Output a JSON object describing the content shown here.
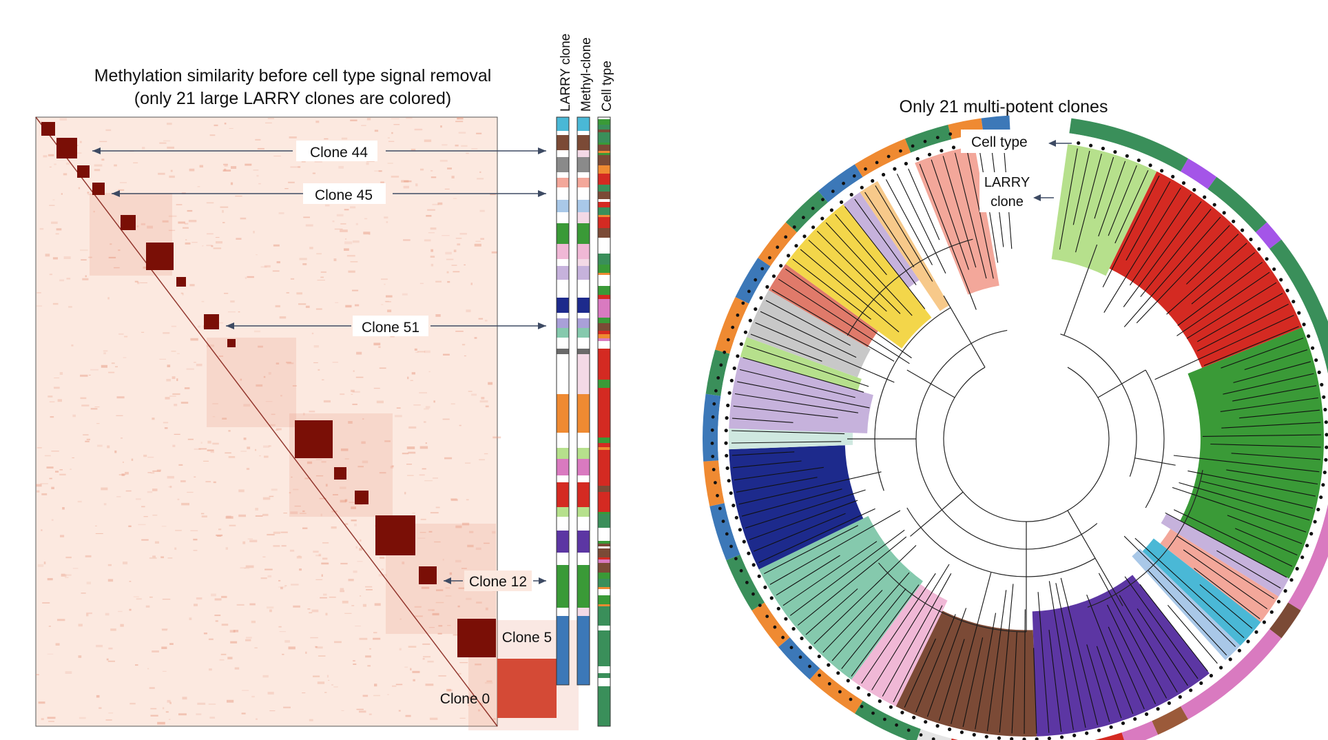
{
  "left_panel": {
    "title_line1": "Methylation similarity before cell type signal removal",
    "title_line2": "(only 21 large LARRY clones are colored)",
    "track_labels": [
      "LARRY clone",
      "Methyl-clone",
      "Cell type"
    ],
    "annotations": [
      "Clone 44",
      "Clone 45",
      "Clone 51",
      "Clone 12",
      "Clone 5",
      "Clone 0"
    ]
  },
  "right_panel": {
    "title": "Only 21 multi-potent clones",
    "cell_type_label": "Cell type",
    "larry_label_line1": "LARRY",
    "larry_label_line2": "clone"
  },
  "colors": {
    "heat_light": "#fbe4d9",
    "heat_mid": "#e7977e",
    "heat_dark": "#7a0f06",
    "clone_red": "#d42a22",
    "clone_green": "#3a9a37",
    "clone_navy": "#1d2a8c",
    "clone_teal": "#85c9ad",
    "clone_purple": "#5c36a3",
    "clone_brown": "#7b4a36",
    "clone_pink": "#f0b8d6",
    "clone_yellow": "#f3d64a",
    "clone_lightgreen": "#b6e08c",
    "clone_salmon": "#f3a79a",
    "clone_lilac": "#c6b2dc",
    "celltype_green": "#3a8f5a",
    "celltype_orange": "#ef8a32",
    "celltype_blue": "#3c78b8",
    "celltype_pink": "#d97ac0",
    "celltype_violet": "#a455e8"
  }
}
